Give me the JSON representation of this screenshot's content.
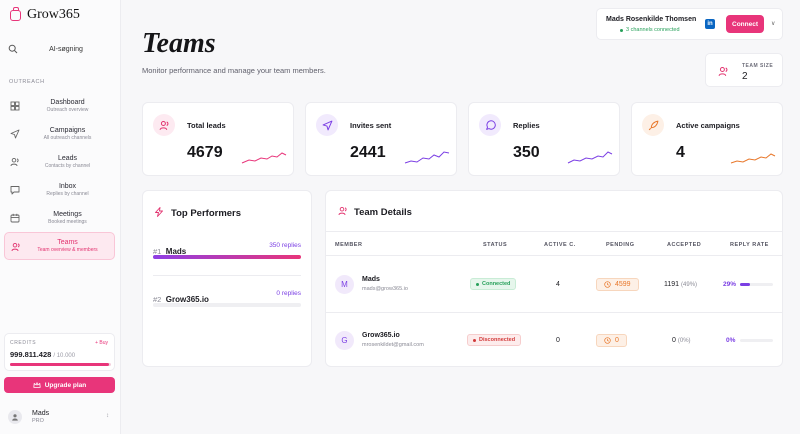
{
  "app": {
    "name": "Grow365"
  },
  "sidebar": {
    "search_label": "AI-søgning",
    "section": "OUTREACH",
    "items": [
      {
        "label": "Dashboard",
        "sub": "Outreach overview"
      },
      {
        "label": "Campaigns",
        "sub": "All outreach channels"
      },
      {
        "label": "Leads",
        "sub": "Contacts by channel"
      },
      {
        "label": "Inbox",
        "sub": "Replies by channel"
      },
      {
        "label": "Meetings",
        "sub": "Booked meetings"
      },
      {
        "label": "Teams",
        "sub": "Team overview & members"
      }
    ],
    "credits": {
      "label": "CREDITS",
      "buy": "+ Buy",
      "amount": "999.811.428",
      "total": "/ 10.000",
      "fill": 0.98
    },
    "upgrade": "Upgrade plan",
    "user": {
      "name": "Mads",
      "plan": "PRO"
    }
  },
  "header": {
    "title": "Teams",
    "subtitle": "Monitor performance and manage your team members."
  },
  "connection": {
    "name": "Mads Rosenkilde Thomsen",
    "status": "3 channels connected",
    "linkedin": "in",
    "button": "Connect"
  },
  "team_size": {
    "label": "TEAM SIZE",
    "value": "2"
  },
  "stats": [
    {
      "label": "Total leads",
      "value": "4679"
    },
    {
      "label": "Invites sent",
      "value": "2441"
    },
    {
      "label": "Replies",
      "value": "350"
    },
    {
      "label": "Active campaigns",
      "value": "4"
    }
  ],
  "performers": {
    "title": "Top Performers",
    "rows": [
      {
        "rank": "#1",
        "name": "Mads",
        "replies": "350 replies",
        "fill": 1.0
      },
      {
        "rank": "#2",
        "name": "Grow365.io",
        "replies": "0 replies",
        "fill": 0.0
      }
    ]
  },
  "details": {
    "title": "Team Details",
    "columns": [
      "MEMBER",
      "STATUS",
      "ACTIVE C.",
      "PENDING",
      "ACCEPTED",
      "REPLY RATE"
    ],
    "rows": [
      {
        "initial": "M",
        "name": "Mads",
        "email": "mads@grow365.io",
        "status": "Connected",
        "active": "4",
        "pending": "4599",
        "accepted": "1191",
        "accepted_pct": "(49%)",
        "rate": "29%",
        "rate_fill": 0.29
      },
      {
        "initial": "G",
        "name": "Grow365.io",
        "email": "mrosenkildet@gmail.com",
        "status": "Disconnected",
        "active": "0",
        "pending": "0",
        "accepted": "0",
        "accepted_pct": "(0%)",
        "rate": "0%",
        "rate_fill": 0.0
      }
    ]
  },
  "colors": {
    "accent": "#e8357a",
    "purple": "#7b3fe4",
    "orange": "#e8772a",
    "green": "#27a05a"
  }
}
